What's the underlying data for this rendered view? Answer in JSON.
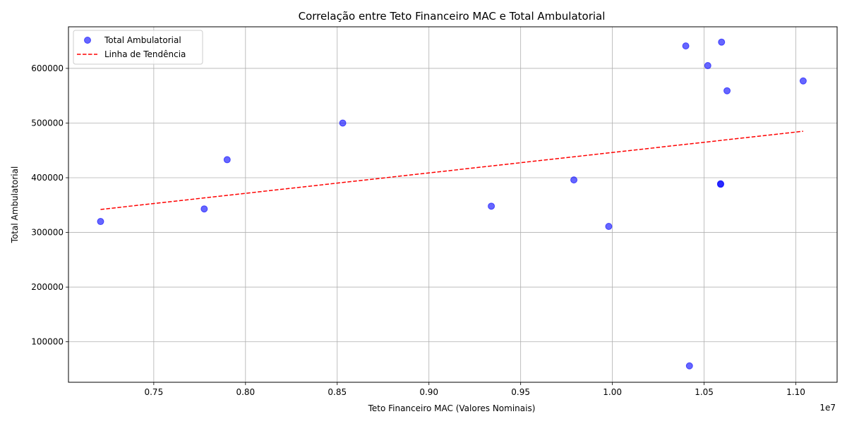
{
  "chart_data": {
    "type": "scatter",
    "title": "Correlação entre Teto Financeiro MAC e Total Ambulatorial",
    "xlabel": "Teto Financeiro MAC (Valores Nominais)",
    "ylabel": "Total Ambulatorial",
    "x_offset_label": "1e7",
    "xlim": [
      0.7035,
      1.1225
    ],
    "ylim": [
      26000,
      676000
    ],
    "x_ticks": [
      0.75,
      0.8,
      0.85,
      0.9,
      0.95,
      1.0,
      1.05,
      1.1
    ],
    "x_tick_labels": [
      "0.75",
      "0.80",
      "0.85",
      "0.90",
      "0.95",
      "1.00",
      "1.05",
      "1.10"
    ],
    "y_ticks": [
      100000,
      200000,
      300000,
      400000,
      500000,
      600000
    ],
    "y_tick_labels": [
      "100000",
      "200000",
      "300000",
      "400000",
      "500000",
      "600000"
    ],
    "grid": true,
    "legend_position": "top-left",
    "series": [
      {
        "name": "Total Ambulatorial",
        "kind": "scatter",
        "color": "#0000ff",
        "x": [
          0.721,
          0.7775,
          0.79,
          0.853,
          0.934,
          0.979,
          0.998,
          1.04,
          1.042,
          1.052,
          1.059,
          1.059,
          1.0595,
          1.0625,
          1.104
        ],
        "y": [
          320000,
          343000,
          433000,
          500000,
          348000,
          396000,
          311000,
          641000,
          56000,
          605000,
          388000,
          389000,
          648000,
          559000,
          577000
        ]
      },
      {
        "name": "Linha de Tendência",
        "kind": "line",
        "color": "#ff0000",
        "x": [
          0.721,
          1.104
        ],
        "y": [
          342000,
          485000
        ]
      }
    ]
  }
}
